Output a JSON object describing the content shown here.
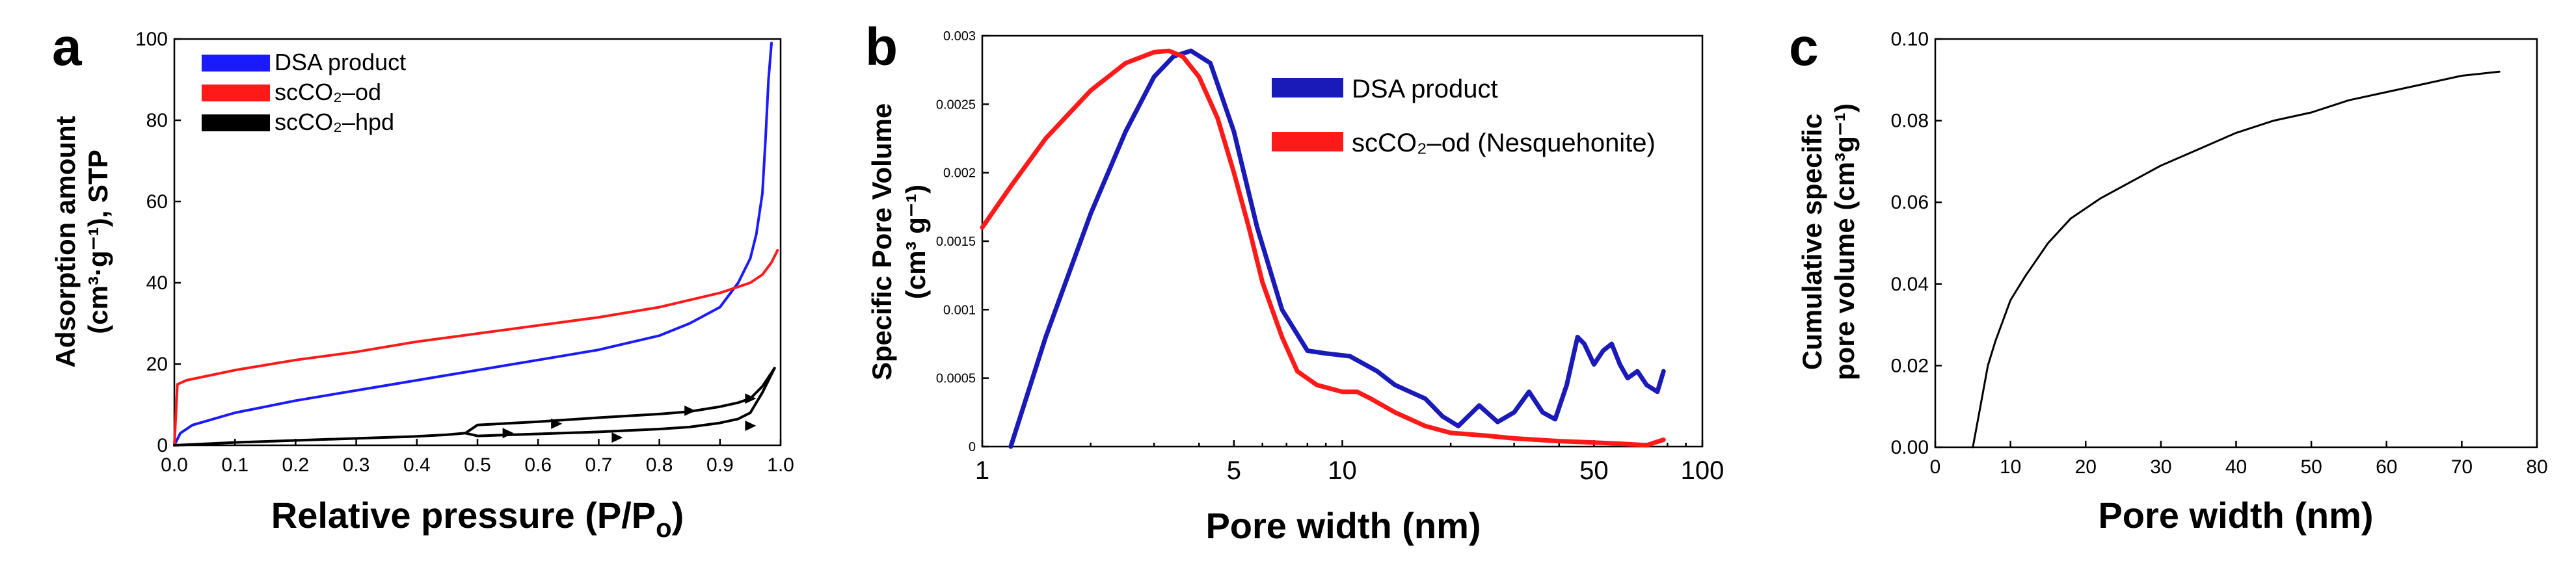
{
  "chart_data": [
    {
      "panel": "a",
      "type": "line",
      "xlabel": "Relative pressure (P/P",
      "xlabel_sub": "o",
      "xlabel_end": ")",
      "ylabel_line1": "Adsorption amount",
      "ylabel_line2": "(cm³·g⁻¹), STP",
      "xlim": [
        0,
        1
      ],
      "ylim": [
        0,
        100
      ],
      "xticks": [
        0.0,
        0.1,
        0.2,
        0.3,
        0.4,
        0.5,
        0.6,
        0.7,
        0.8,
        0.9,
        1.0
      ],
      "xtick_labels": [
        "0.0",
        "0.1",
        "0.2",
        "0.3",
        "0.4",
        "0.5",
        "0.6",
        "0.7",
        "0.8",
        "0.9",
        "1.0"
      ],
      "yticks": [
        0,
        20,
        40,
        60,
        80,
        100
      ],
      "ytick_labels": [
        "0",
        "20",
        "40",
        "60",
        "80",
        "100"
      ],
      "legend": {
        "position": "top-left"
      },
      "series": [
        {
          "name": "DSA product",
          "color": "#1a1aff",
          "x": [
            0.0,
            0.01,
            0.03,
            0.1,
            0.2,
            0.3,
            0.4,
            0.5,
            0.6,
            0.7,
            0.8,
            0.85,
            0.9,
            0.93,
            0.95,
            0.96,
            0.97,
            0.975,
            0.98,
            0.985
          ],
          "y": [
            0,
            3,
            5,
            8,
            11,
            13.5,
            16,
            18.5,
            21,
            23.5,
            27,
            30,
            34,
            40,
            46,
            52,
            62,
            75,
            90,
            99
          ]
        },
        {
          "name": "scCO₂–od",
          "color": "#ff1a1a",
          "x": [
            0.0,
            0.005,
            0.02,
            0.1,
            0.2,
            0.3,
            0.4,
            0.5,
            0.6,
            0.7,
            0.8,
            0.9,
            0.95,
            0.97,
            0.985,
            0.995
          ],
          "y": [
            0,
            15,
            16,
            18.5,
            21,
            23,
            25.5,
            27.5,
            29.5,
            31.5,
            34,
            37.5,
            40,
            42,
            45,
            48
          ]
        },
        {
          "name": "scCO₂–hpd",
          "color": "#000000",
          "x": [
            0.0,
            0.1,
            0.2,
            0.3,
            0.4,
            0.45,
            0.48,
            0.5,
            0.6,
            0.7,
            0.8,
            0.85,
            0.9,
            0.93,
            0.95,
            0.97,
            0.99
          ],
          "y": [
            0,
            0.7,
            1.2,
            1.7,
            2.2,
            2.6,
            3.0,
            5.0,
            5.8,
            6.8,
            7.7,
            8.3,
            9.5,
            10.5,
            11.5,
            14.5,
            19
          ],
          "desorption_x": [
            0.99,
            0.97,
            0.95,
            0.93,
            0.9,
            0.85,
            0.8,
            0.7,
            0.6,
            0.5,
            0.48
          ],
          "desorption_y": [
            19,
            13,
            8,
            6.5,
            5.5,
            4.5,
            4.0,
            3.3,
            2.8,
            2.3,
            3.0
          ],
          "markers": [
            [
              0.55,
              3.0
            ],
            [
              0.63,
              5.3
            ],
            [
              0.73,
              1.9
            ],
            [
              0.85,
              8.5
            ],
            [
              0.95,
              4.8
            ],
            [
              0.95,
              11.5
            ]
          ]
        }
      ]
    },
    {
      "panel": "b",
      "type": "line",
      "xscale": "log",
      "xlabel": "Pore width (nm)",
      "ylabel_line1": "Specific Pore Volume",
      "ylabel_line2": "(cm³ g⁻¹)",
      "xlim": [
        1,
        100
      ],
      "ylim": [
        0,
        0.003
      ],
      "xticks": [
        1,
        5,
        10,
        50,
        100
      ],
      "xtick_labels": [
        "1",
        "5",
        "10",
        "50",
        "100"
      ],
      "yticks": [
        0,
        0.0005,
        0.001,
        0.0015,
        0.002,
        0.0025,
        0.003
      ],
      "ytick_labels": [
        "0",
        "0.0005",
        "0.001",
        "0.0015",
        "0.002",
        "0.0025",
        "0.003"
      ],
      "legend": {
        "position": "top-right"
      },
      "series": [
        {
          "name": "DSA product",
          "color": "#1a1ab8",
          "x": [
            1.2,
            1.5,
            2.0,
            2.5,
            3.0,
            3.4,
            3.8,
            4.3,
            5.0,
            5.8,
            6.8,
            8.0,
            9.0,
            10.5,
            12.5,
            14,
            17,
            19,
            21,
            24,
            27,
            30,
            33,
            36,
            39,
            42,
            45,
            47,
            50,
            53,
            56,
            59,
            62,
            66,
            70,
            75,
            78
          ],
          "y": [
            0.0,
            0.0008,
            0.0017,
            0.0023,
            0.0027,
            0.00285,
            0.00289,
            0.0028,
            0.0023,
            0.0016,
            0.001,
            0.0007,
            0.00068,
            0.00066,
            0.00055,
            0.00045,
            0.00035,
            0.00022,
            0.00015,
            0.0003,
            0.00018,
            0.00025,
            0.0004,
            0.00025,
            0.0002,
            0.00045,
            0.0008,
            0.00075,
            0.0006,
            0.0007,
            0.00075,
            0.0006,
            0.0005,
            0.00055,
            0.00045,
            0.0004,
            0.00055
          ]
        },
        {
          "name": "scCO₂–od (Nesquehonite)",
          "color": "#ff1a1a",
          "x": [
            1.0,
            1.2,
            1.5,
            2.0,
            2.5,
            3.0,
            3.3,
            3.6,
            4.0,
            4.5,
            5.0,
            5.5,
            6.0,
            6.8,
            7.5,
            8.5,
            10,
            11,
            12,
            14,
            17,
            20,
            25,
            30,
            40,
            50,
            60,
            70,
            78
          ],
          "y": [
            0.0016,
            0.0019,
            0.00225,
            0.0026,
            0.0028,
            0.00288,
            0.00289,
            0.00285,
            0.0027,
            0.0024,
            0.002,
            0.0016,
            0.0012,
            0.0008,
            0.00055,
            0.00045,
            0.0004,
            0.0004,
            0.00035,
            0.00025,
            0.00015,
            0.0001,
            8e-05,
            6e-05,
            4e-05,
            3e-05,
            2e-05,
            1e-05,
            5e-05
          ]
        }
      ]
    },
    {
      "panel": "c",
      "type": "line",
      "xlabel": "Pore width (nm)",
      "ylabel_line1": "Cumulative specific",
      "ylabel_line2": "pore volume (cm³g⁻¹)",
      "xlim": [
        0,
        80
      ],
      "ylim": [
        0,
        0.1
      ],
      "xticks": [
        0,
        10,
        20,
        30,
        40,
        50,
        60,
        70,
        80
      ],
      "xtick_labels": [
        "0",
        "10",
        "20",
        "30",
        "40",
        "50",
        "60",
        "70",
        "80"
      ],
      "yticks": [
        0,
        0.02,
        0.04,
        0.06,
        0.08,
        0.1
      ],
      "ytick_labels": [
        "0.00",
        "0.02",
        "0.04",
        "0.06",
        "0.08",
        "0.10"
      ],
      "series": [
        {
          "name": "cumulative",
          "color": "#000000",
          "x": [
            5.0,
            6,
            7,
            8,
            10,
            12,
            15,
            18,
            22,
            26,
            30,
            35,
            40,
            45,
            50,
            55,
            60,
            65,
            70,
            75
          ],
          "y": [
            0.0,
            0.01,
            0.02,
            0.026,
            0.036,
            0.042,
            0.05,
            0.056,
            0.061,
            0.065,
            0.069,
            0.073,
            0.077,
            0.08,
            0.082,
            0.085,
            0.087,
            0.089,
            0.091,
            0.092
          ]
        }
      ]
    }
  ],
  "panel_labels": {
    "a": "a",
    "b": "b",
    "c": "c"
  }
}
